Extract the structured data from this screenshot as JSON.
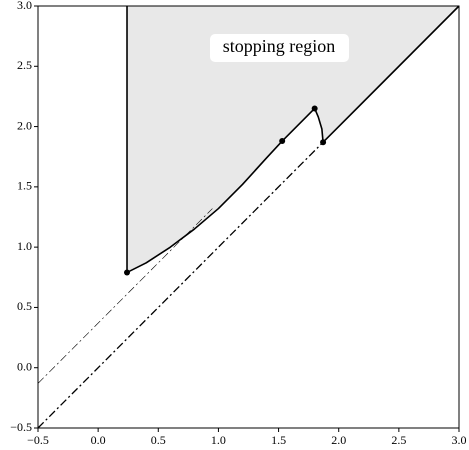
{
  "chart_data": {
    "type": "line",
    "annotation": "stopping region",
    "xlim": [
      -0.5,
      3.0
    ],
    "ylim": [
      -0.5,
      3.0
    ],
    "xticks": [
      {
        "value": -0.5,
        "label": "−0.5"
      },
      {
        "value": 0.0,
        "label": "0.0"
      },
      0.5,
      {
        "value": 1.0,
        "label": "1.0"
      },
      1.5,
      {
        "value": 2.0,
        "label": "2.0"
      },
      2.5,
      {
        "value": 3.0,
        "label": "3.0"
      }
    ],
    "yticks": [
      {
        "value": -0.5,
        "label": "−0.5"
      },
      {
        "value": 0.0,
        "label": "0.0"
      },
      0.5,
      {
        "value": 1.0,
        "label": "1.0"
      },
      1.5,
      {
        "value": 2.0,
        "label": "2.0"
      },
      2.5,
      {
        "value": 3.0,
        "label": "3.0"
      }
    ],
    "region": {
      "color": "#e8e8e8",
      "x": [
        0.24,
        0.24,
        3.0,
        1.87,
        1.86,
        1.83,
        1.8,
        1.53,
        1.4,
        1.2,
        1.0,
        0.8,
        0.6,
        0.4,
        0.24
      ],
      "y": [
        0.79,
        3.0,
        3.0,
        1.87,
        1.98,
        2.08,
        2.15,
        1.88,
        1.74,
        1.52,
        1.32,
        1.15,
        1.0,
        0.87,
        0.79
      ]
    },
    "series": [
      {
        "color": "#000000",
        "width": 1.6,
        "dash": "solid",
        "x": [
          0.24,
          0.24
        ],
        "y": [
          0.79,
          3.0
        ]
      },
      {
        "color": "#000000",
        "width": 1.6,
        "dash": "solid",
        "x": [
          0.24,
          0.4,
          0.6,
          0.8,
          1.0,
          1.2,
          1.4,
          1.53,
          1.8,
          1.83,
          1.86,
          1.87
        ],
        "y": [
          0.79,
          0.87,
          1.0,
          1.15,
          1.32,
          1.52,
          1.74,
          1.88,
          2.15,
          2.08,
          1.98,
          1.87
        ]
      },
      {
        "color": "#000000",
        "width": 1.6,
        "dash": "solid",
        "x": [
          1.87,
          3.0
        ],
        "y": [
          1.87,
          3.0
        ]
      },
      {
        "color": "#000000",
        "width": 1.3,
        "dash": "dashdot",
        "x": [
          -0.5,
          1.87
        ],
        "y": [
          -0.5,
          1.87
        ]
      },
      {
        "color": "#000000",
        "width": 0.6,
        "dash": "dashdot",
        "x": [
          -0.5,
          0.95
        ],
        "y": [
          -0.13,
          1.32
        ]
      }
    ],
    "points": {
      "color": "#000000",
      "x": [
        0.24,
        1.53,
        1.8,
        1.87
      ],
      "y": [
        0.79,
        1.88,
        2.15,
        1.87
      ]
    }
  }
}
